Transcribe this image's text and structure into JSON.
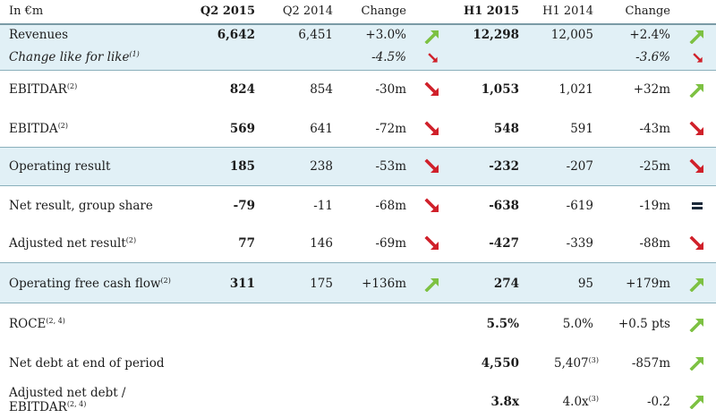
{
  "header": {
    "unit": "In €m",
    "q2_2015": "Q2 2015",
    "q2_2014": "Q2 2014",
    "q_change": "Change",
    "h1_2015": "H1 2015",
    "h1_2014": "H1 2014",
    "h_change": "Change"
  },
  "colors": {
    "up": "#7dc142",
    "down": "#d0202a",
    "shade": "#e1f0f6",
    "rule": "#8ab0bc"
  },
  "rows": [
    {
      "label": "Revenues",
      "sup": "",
      "q2_2015": "6,642",
      "q2_2014": "6,451",
      "q_change": "+3.0%",
      "q_trend": "up-arrow-icon",
      "h1_2015": "12,298",
      "h1_2014": "12,005",
      "h_change": "+2.4%",
      "h_trend": "up-arrow-icon"
    },
    {
      "label": "Change like for like",
      "sup": "(1)",
      "q_change": "-4.5%",
      "q_trend": "down-arrow-icon",
      "h_change": "-3.6%",
      "h_trend": "down-arrow-icon"
    },
    {
      "label": "EBITDAR",
      "sup": "(2)",
      "q2_2015": "824",
      "q2_2014": "854",
      "q_change": "-30m",
      "q_trend": "down-arrow-icon",
      "h1_2015": "1,053",
      "h1_2014": "1,021",
      "h_change": "+32m",
      "h_trend": "up-arrow-icon"
    },
    {
      "label": "EBITDA",
      "sup": "(2)",
      "q2_2015": "569",
      "q2_2014": "641",
      "q_change": "-72m",
      "q_trend": "down-arrow-icon",
      "h1_2015": "548",
      "h1_2014": "591",
      "h_change": "-43m",
      "h_trend": "down-arrow-icon"
    },
    {
      "label": "Operating result",
      "sup": "",
      "q2_2015": "185",
      "q2_2014": "238",
      "q_change": "-53m",
      "q_trend": "down-arrow-icon",
      "h1_2015": "-232",
      "h1_2014": "-207",
      "h_change": "-25m",
      "h_trend": "down-arrow-icon"
    },
    {
      "label": "Net result, group share",
      "sup": "",
      "q2_2015": "-79",
      "q2_2014": "-11",
      "q_change": "-68m",
      "q_trend": "down-arrow-icon",
      "h1_2015": "-638",
      "h1_2014": "-619",
      "h_change": "-19m",
      "h_trend": "equal-icon"
    },
    {
      "label": "Adjusted net result",
      "sup": "(2)",
      "q2_2015": "77",
      "q2_2014": "146",
      "q_change": "-69m",
      "q_trend": "down-arrow-icon",
      "h1_2015": "-427",
      "h1_2014": "-339",
      "h_change": "-88m",
      "h_trend": "down-arrow-icon"
    },
    {
      "label": "Operating free cash flow",
      "sup": "(2)",
      "q2_2015": "311",
      "q2_2014": "175",
      "q_change": "+136m",
      "q_trend": "up-arrow-icon",
      "h1_2015": "274",
      "h1_2014": "95",
      "h_change": "+179m",
      "h_trend": "up-arrow-icon"
    },
    {
      "label": "ROCE",
      "sup": "(2, 4)",
      "h1_2015": "5.5%",
      "h1_2014": "5.0%",
      "h_change": "+0.5 pts",
      "h_trend": "up-arrow-icon"
    },
    {
      "label": "Net debt at end of period",
      "sup": "",
      "h1_2015": "4,550",
      "h1_2014": "5,407",
      "h1_2014_sup": "(3)",
      "h_change": "-857m",
      "h_trend": "up-arrow-icon"
    },
    {
      "label": "Adjusted net debt /",
      "label2": "EBITDAR",
      "sup": "(2, 4)",
      "h1_2015": "3.8x",
      "h1_2014": "4.0x",
      "h1_2014_sup": "(3)",
      "h_change": "-0.2",
      "h_trend": "up-arrow-icon"
    }
  ]
}
